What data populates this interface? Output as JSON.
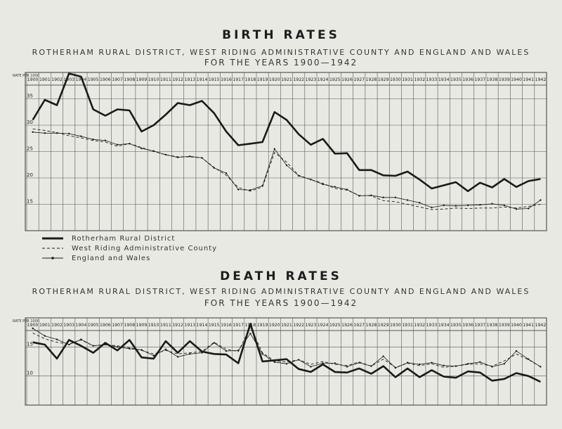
{
  "birth": {
    "title": "BIRTH RATES",
    "subtitle": "ROTHERHAM RURAL DISTRICT, WEST RIDING ADMINISTRATIVE COUNTY AND ENGLAND AND WALES",
    "subtitle2": "FOR THE YEARS 1900—1942"
  },
  "death": {
    "title": "DEATH RATES",
    "subtitle": "ROTHERHAM RURAL DISTRICT, WEST RIDING ADMINISTRATIVE COUNTY AND ENGLAND AND WALES",
    "subtitle2": "FOR THE YEARS 1900—1942"
  },
  "legend": [
    {
      "label": "Rotherham Rural District",
      "style": "thick"
    },
    {
      "label": "West Riding Administrative County",
      "style": "dashed"
    },
    {
      "label": "England and Wales",
      "style": "dot-line"
    }
  ],
  "corner_label": "RATE PER 1000",
  "colors": {
    "background": "#e9e9e4",
    "line": "#1a1a1a",
    "grid": "#555555"
  },
  "chart_data": [
    {
      "type": "line",
      "title": "BIRTH RATES",
      "x": [
        1900,
        1901,
        1902,
        1903,
        1904,
        1905,
        1906,
        1907,
        1908,
        1909,
        1910,
        1911,
        1912,
        1913,
        1914,
        1915,
        1916,
        1917,
        1918,
        1919,
        1920,
        1921,
        1922,
        1923,
        1924,
        1925,
        1926,
        1927,
        1928,
        1929,
        1930,
        1931,
        1932,
        1933,
        1934,
        1935,
        1936,
        1937,
        1938,
        1939,
        1940,
        1941,
        1942
      ],
      "y_ticks": [
        15,
        20,
        25,
        30,
        35
      ],
      "ylim": [
        10,
        40
      ],
      "series": [
        {
          "name": "Rotherham Rural District",
          "style": "thick",
          "values": [
            31.0,
            34.8,
            33.8,
            39.8,
            39.2,
            33.0,
            31.8,
            33.0,
            32.8,
            28.8,
            30.0,
            32.0,
            34.2,
            33.8,
            34.6,
            32.3,
            28.8,
            26.2,
            26.5,
            26.8,
            32.5,
            31.0,
            28.3,
            26.3,
            27.4,
            24.6,
            24.7,
            21.5,
            21.5,
            20.5,
            20.4,
            21.2,
            19.7,
            18.0,
            18.6,
            19.2,
            17.5,
            19.1,
            18.2,
            19.8,
            18.3,
            19.4,
            19.8
          ]
        },
        {
          "name": "West Riding Administrative County",
          "style": "dashed",
          "values": [
            29.3,
            29.0,
            28.6,
            28.0,
            27.6,
            27.1,
            26.8,
            26.0,
            26.5,
            25.8,
            25.0,
            24.4,
            24.0,
            24.0,
            23.8,
            22.0,
            20.5,
            18.2,
            17.5,
            18.3,
            24.8,
            23.0,
            20.5,
            19.7,
            19.0,
            18.0,
            17.7,
            16.7,
            16.6,
            15.7,
            15.5,
            15.0,
            14.5,
            14.0,
            14.1,
            14.3,
            14.2,
            14.3,
            14.3,
            14.5,
            14.3,
            14.6,
            15.0
          ]
        },
        {
          "name": "England and Wales",
          "style": "dot-line",
          "values": [
            28.7,
            28.5,
            28.5,
            28.4,
            27.9,
            27.3,
            27.1,
            26.3,
            26.5,
            25.6,
            25.1,
            24.4,
            23.9,
            24.1,
            23.8,
            21.9,
            20.9,
            17.8,
            17.7,
            18.5,
            25.5,
            22.4,
            20.4,
            19.7,
            18.8,
            18.3,
            17.8,
            16.6,
            16.7,
            16.3,
            16.3,
            15.8,
            15.3,
            14.4,
            14.8,
            14.7,
            14.8,
            14.9,
            15.1,
            14.8,
            14.1,
            14.2,
            15.8
          ]
        }
      ]
    },
    {
      "type": "line",
      "title": "DEATH RATES",
      "x": [
        1900,
        1901,
        1902,
        1903,
        1904,
        1905,
        1906,
        1907,
        1908,
        1909,
        1910,
        1911,
        1912,
        1913,
        1914,
        1915,
        1916,
        1917,
        1918,
        1919,
        1920,
        1921,
        1922,
        1923,
        1924,
        1925,
        1926,
        1927,
        1928,
        1929,
        1930,
        1931,
        1932,
        1933,
        1934,
        1935,
        1936,
        1937,
        1938,
        1939,
        1940,
        1941,
        1942
      ],
      "y_ticks": [
        10,
        15
      ],
      "ylim": [
        5,
        20
      ],
      "series": [
        {
          "name": "Rotherham Rural District",
          "style": "thick",
          "values": [
            15.8,
            15.4,
            13.0,
            16.2,
            15.2,
            14.0,
            15.7,
            14.4,
            16.2,
            13.2,
            13.0,
            16.0,
            14.0,
            16.0,
            14.2,
            13.8,
            13.7,
            12.2,
            19.0,
            12.5,
            12.7,
            12.9,
            11.2,
            10.7,
            12.0,
            10.7,
            10.6,
            11.3,
            10.4,
            11.7,
            9.8,
            11.3,
            9.8,
            11.0,
            9.9,
            9.7,
            10.8,
            10.6,
            9.2,
            9.5,
            10.5,
            10.0,
            9.0
          ]
        },
        {
          "name": "West Riding Administrative County",
          "style": "dashed",
          "values": [
            17.4,
            16.4,
            15.8,
            15.5,
            16.2,
            15.2,
            15.4,
            15.2,
            14.9,
            14.4,
            13.8,
            14.4,
            13.8,
            14.0,
            14.2,
            15.8,
            14.6,
            14.2,
            18.4,
            14.0,
            12.6,
            12.4,
            12.8,
            12.0,
            12.5,
            12.0,
            11.8,
            12.4,
            11.7,
            12.9,
            11.5,
            12.2,
            11.8,
            12.1,
            11.5,
            11.7,
            12.0,
            12.1,
            11.7,
            12.6,
            13.8,
            12.8,
            11.6
          ]
        },
        {
          "name": "England and Wales",
          "style": "dot-line",
          "values": [
            18.2,
            16.9,
            16.3,
            15.4,
            16.3,
            15.2,
            15.4,
            15.0,
            14.7,
            14.5,
            13.5,
            14.6,
            13.3,
            13.8,
            14.0,
            15.7,
            14.3,
            14.4,
            17.3,
            13.8,
            12.4,
            12.1,
            12.8,
            11.6,
            12.2,
            12.2,
            11.6,
            12.3,
            11.7,
            13.4,
            11.4,
            12.3,
            12.0,
            12.3,
            11.8,
            11.7,
            12.1,
            12.4,
            11.6,
            12.1,
            14.3,
            12.9,
            11.6
          ]
        }
      ]
    }
  ]
}
